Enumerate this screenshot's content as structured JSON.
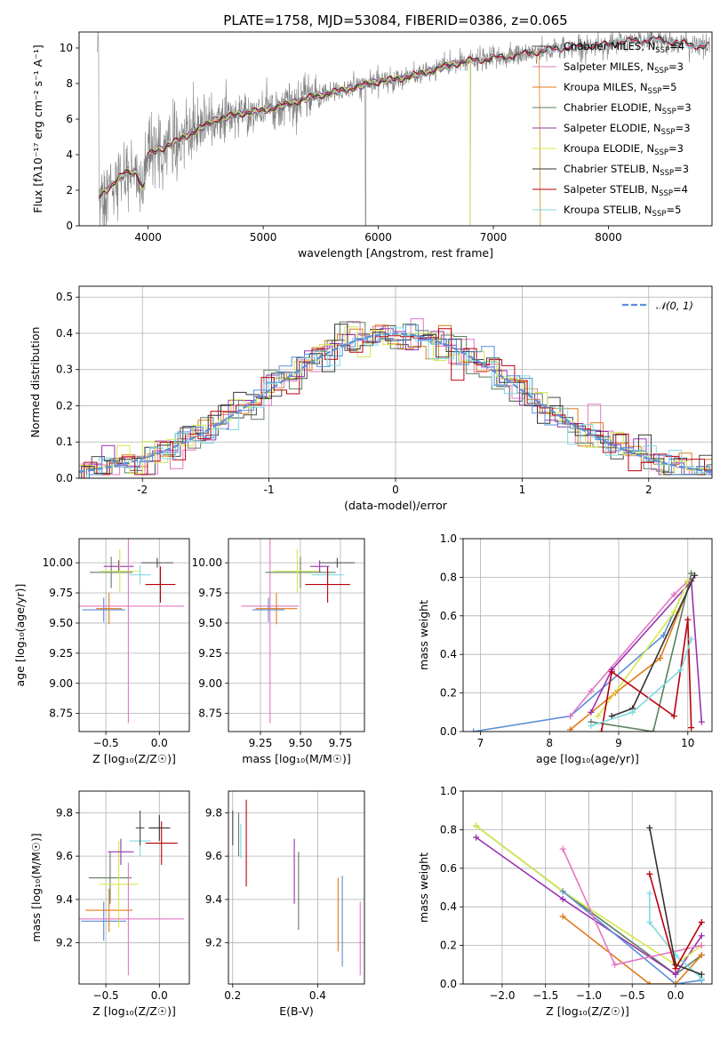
{
  "palette": {
    "Chabrier MILES": "#4a4a4a",
    "Salpeter MILES": "#e377c2",
    "Kroupa MILES": "#e07b1a",
    "Chabrier ELODIE": "#5f7f5f",
    "Salpeter ELODIE": "#9a32b0",
    "Kroupa ELODIE": "#d4e84a",
    "Chabrier STELIB": "#333333",
    "Salpeter STELIB": "#b8000a",
    "Kroupa STELIB": "#7fd9e0",
    "normal": "#5b8fd6",
    "data": "#808080",
    "blue_extra": "#5b8fd6"
  },
  "chart_data": [
    {
      "id": "spectrum",
      "type": "line",
      "title": "PLATE=1758, MJD=53084, FIBERID=0386, z=0.065",
      "xlabel": "wavelength [Angstrom, rest frame]",
      "ylabel": "Flux [fλ10⁻¹⁷ erg cm⁻² s⁻¹ A⁻¹]",
      "xlim": [
        3400,
        8900
      ],
      "ylim": [
        0,
        10.9
      ],
      "xticks": [
        4000,
        5000,
        6000,
        7000,
        8000
      ],
      "yticks": [
        0,
        2,
        4,
        6,
        8,
        10
      ],
      "legend_position": "upper-right",
      "legend": [
        {
          "label": "Chabrier MILES, N",
          "sub": "SSP",
          "suffix": "=4",
          "color_key": "Chabrier MILES"
        },
        {
          "label": "Salpeter MILES, N",
          "sub": "SSP",
          "suffix": "=3",
          "color_key": "Salpeter MILES"
        },
        {
          "label": "Kroupa MILES, N",
          "sub": "SSP",
          "suffix": "=5",
          "color_key": "Kroupa MILES"
        },
        {
          "label": "Chabrier ELODIE, N",
          "sub": "SSP",
          "suffix": "=3",
          "color_key": "Chabrier ELODIE"
        },
        {
          "label": "Salpeter ELODIE, N",
          "sub": "SSP",
          "suffix": "=3",
          "color_key": "Salpeter ELODIE"
        },
        {
          "label": "Kroupa ELODIE, N",
          "sub": "SSP",
          "suffix": "=3",
          "color_key": "Kroupa ELODIE"
        },
        {
          "label": "Chabrier STELIB, N",
          "sub": "SSP",
          "suffix": "=3",
          "color_key": "Chabrier STELIB"
        },
        {
          "label": "Salpeter STELIB, N",
          "sub": "SSP",
          "suffix": "=4",
          "color_key": "Salpeter STELIB"
        },
        {
          "label": "Kroupa STELIB, N",
          "sub": "SSP",
          "suffix": "=5",
          "color_key": "Kroupa STELIB"
        }
      ],
      "model_continuum": [
        [
          3570,
          1.6
        ],
        [
          3700,
          2.4
        ],
        [
          3800,
          3.0
        ],
        [
          3900,
          3.0
        ],
        [
          3960,
          2.0
        ],
        [
          4000,
          4.0
        ],
        [
          4200,
          4.6
        ],
        [
          4400,
          5.3
        ],
        [
          4600,
          6.0
        ],
        [
          4800,
          6.3
        ],
        [
          5000,
          6.5
        ],
        [
          5200,
          6.8
        ],
        [
          5400,
          7.2
        ],
        [
          5600,
          7.5
        ],
        [
          5800,
          7.8
        ],
        [
          6000,
          8.1
        ],
        [
          6200,
          8.3
        ],
        [
          6400,
          8.6
        ],
        [
          6600,
          9.0
        ],
        [
          6800,
          9.3
        ],
        [
          7000,
          9.4
        ],
        [
          7200,
          9.6
        ],
        [
          7400,
          9.8
        ],
        [
          7600,
          10.0
        ],
        [
          7800,
          10.1
        ],
        [
          8000,
          10.2
        ],
        [
          8200,
          10.4
        ],
        [
          8400,
          10.5
        ],
        [
          8600,
          10.3
        ],
        [
          8800,
          10.1
        ]
      ]
    },
    {
      "id": "residuals",
      "type": "histogram",
      "xlabel": "(data-model)/error",
      "ylabel": "Normed distribution",
      "xlim": [
        -2.5,
        2.5
      ],
      "ylim": [
        0,
        0.53
      ],
      "xticks": [
        -2,
        -1,
        0,
        1,
        2
      ],
      "yticks": [
        0.0,
        0.1,
        0.2,
        0.3,
        0.4,
        0.5
      ],
      "grid": true,
      "legend_position": "upper-right",
      "legend": [
        {
          "label": "𝒩(0, 1)",
          "color_key": "normal",
          "style": "dashed"
        }
      ],
      "bin_width": 0.1,
      "bin_start": -2.5
    },
    {
      "id": "age_vs_Z",
      "type": "errorbar",
      "xlabel": "Z [log₁₀(Z/Z☉)]",
      "ylabel": "age  [log₁₀(age/yr)]",
      "xlim": [
        -0.75,
        0.28
      ],
      "ylim": [
        8.6,
        10.2
      ],
      "xticks": [
        -0.5,
        0.0
      ],
      "xticklabels": [
        "−0.5",
        "0.0"
      ],
      "yticks": [
        8.75,
        9.0,
        9.25,
        9.5,
        9.75,
        10.0
      ],
      "yticklabels": [
        "8.75",
        "9.00",
        "9.25",
        "9.50",
        "9.75",
        "10.00"
      ],
      "grid": true,
      "points": [
        {
          "color_key": "blue_extra",
          "x": -0.52,
          "xerr": 0.2,
          "y": 9.61,
          "yerr": 0.1
        },
        {
          "color_key": "Kroupa MILES",
          "x": -0.47,
          "xerr": 0.12,
          "y": 9.62,
          "yerr": 0.13
        },
        {
          "color_key": "Chabrier ELODIE",
          "x": -0.45,
          "xerr": 0.2,
          "y": 9.92,
          "yerr": 0.13
        },
        {
          "color_key": "Salpeter ELODIE",
          "x": -0.38,
          "xerr": 0.14,
          "y": 9.97,
          "yerr": 0.05
        },
        {
          "color_key": "Kroupa ELODIE",
          "x": -0.37,
          "xerr": 0.18,
          "y": 9.93,
          "yerr": 0.18
        },
        {
          "color_key": "Salpeter MILES",
          "x": -0.29,
          "xerr": 0.52,
          "y": 9.64,
          "yerr": 0.97
        },
        {
          "color_key": "Kroupa STELIB",
          "x": -0.18,
          "xerr": 0.1,
          "y": 9.9,
          "yerr": 0.08
        },
        {
          "color_key": "Chabrier MILES",
          "x": -0.02,
          "xerr": 0.15,
          "y": 10.0,
          "yerr": 0.04
        },
        {
          "color_key": "Salpeter STELIB",
          "x": 0.01,
          "xerr": 0.14,
          "y": 9.82,
          "yerr": 0.15
        }
      ]
    },
    {
      "id": "age_vs_mass",
      "type": "errorbar",
      "xlabel": "mass [log₁₀(M/M☉)]",
      "ylabel": "",
      "xlim": [
        9.05,
        9.9
      ],
      "ylim": [
        8.6,
        10.2
      ],
      "xticks": [
        9.25,
        9.5,
        9.75
      ],
      "xticklabels": [
        "9.25",
        "9.50",
        "9.75"
      ],
      "yticks": [
        8.75,
        9.0,
        9.25,
        9.5,
        9.75,
        10.0
      ],
      "yticklabels": [
        "8.75",
        "9.00",
        "9.25",
        "9.50",
        "9.75",
        "10.00"
      ],
      "grid": true,
      "points": [
        {
          "color_key": "Salpeter MILES",
          "x": 9.31,
          "xerr": 0.18,
          "y": 9.64,
          "yerr": 0.97
        },
        {
          "color_key": "blue_extra",
          "x": 9.3,
          "xerr": 0.1,
          "y": 9.61,
          "yerr": 0.1
        },
        {
          "color_key": "Kroupa MILES",
          "x": 9.35,
          "xerr": 0.13,
          "y": 9.62,
          "yerr": 0.13
        },
        {
          "color_key": "Chabrier ELODIE",
          "x": 9.5,
          "xerr": 0.22,
          "y": 9.92,
          "yerr": 0.13
        },
        {
          "color_key": "Kroupa ELODIE",
          "x": 9.48,
          "xerr": 0.15,
          "y": 9.93,
          "yerr": 0.18
        },
        {
          "color_key": "Salpeter ELODIE",
          "x": 9.62,
          "xerr": 0.06,
          "y": 9.97,
          "yerr": 0.05
        },
        {
          "color_key": "Kroupa STELIB",
          "x": 9.67,
          "xerr": 0.1,
          "y": 9.9,
          "yerr": 0.08
        },
        {
          "color_key": "Chabrier MILES",
          "x": 9.73,
          "xerr": 0.11,
          "y": 10.0,
          "yerr": 0.04
        },
        {
          "color_key": "Salpeter STELIB",
          "x": 9.67,
          "xerr": 0.14,
          "y": 9.82,
          "yerr": 0.15
        }
      ]
    },
    {
      "id": "weight_vs_age",
      "type": "line",
      "xlabel": "age  [log₁₀(age/yr)]",
      "ylabel": "mass weight",
      "xlim": [
        6.75,
        10.35
      ],
      "ylim": [
        0,
        1.0
      ],
      "xticks": [
        7,
        8,
        9,
        10
      ],
      "yticks": [
        0.0,
        0.2,
        0.4,
        0.6,
        0.8,
        1.0
      ],
      "grid": true,
      "series": [
        {
          "color_key": "blue_extra",
          "points": [
            [
              6.9,
              0.0
            ],
            [
              8.3,
              0.08
            ],
            [
              9.65,
              0.5
            ],
            [
              10.0,
              0.78
            ]
          ]
        },
        {
          "color_key": "Salpeter MILES",
          "points": [
            [
              8.3,
              0.08
            ],
            [
              8.6,
              0.21
            ],
            [
              9.8,
              0.71
            ],
            [
              10.0,
              0.78
            ]
          ]
        },
        {
          "color_key": "Kroupa MILES",
          "points": [
            [
              8.3,
              0.01
            ],
            [
              8.95,
              0.2
            ],
            [
              9.6,
              0.38
            ],
            [
              10.05,
              0.78
            ]
          ]
        },
        {
          "color_key": "Chabrier ELODIE",
          "points": [
            [
              8.6,
              0.05
            ],
            [
              9.5,
              0.0
            ],
            [
              10.05,
              0.82
            ]
          ]
        },
        {
          "color_key": "Salpeter ELODIE",
          "points": [
            [
              8.6,
              0.1
            ],
            [
              8.9,
              0.32
            ],
            [
              10.05,
              0.78
            ],
            [
              10.2,
              0.05
            ]
          ]
        },
        {
          "color_key": "Kroupa ELODIE",
          "points": [
            [
              8.7,
              0.08
            ],
            [
              9.8,
              0.62
            ],
            [
              10.0,
              0.78
            ]
          ]
        },
        {
          "color_key": "Chabrier STELIB",
          "points": [
            [
              8.9,
              0.08
            ],
            [
              9.2,
              0.12
            ],
            [
              10.1,
              0.81
            ]
          ]
        },
        {
          "color_key": "Salpeter STELIB",
          "points": [
            [
              8.75,
              0.0
            ],
            [
              8.9,
              0.31
            ],
            [
              9.8,
              0.08
            ],
            [
              10.0,
              0.58
            ],
            [
              10.05,
              0.02
            ]
          ]
        },
        {
          "color_key": "Kroupa STELIB",
          "points": [
            [
              8.6,
              0.03
            ],
            [
              9.2,
              0.1
            ],
            [
              9.9,
              0.32
            ],
            [
              10.05,
              0.48
            ]
          ]
        }
      ]
    },
    {
      "id": "mass_vs_Z",
      "type": "errorbar",
      "xlabel": "Z [log₁₀(Z/Z☉)]",
      "ylabel": "mass [log₁₀(M/M☉)]",
      "xlim": [
        -0.75,
        0.28
      ],
      "ylim": [
        9.01,
        9.9
      ],
      "xticks": [
        -0.5,
        0.0
      ],
      "xticklabels": [
        "−0.5",
        "0.0"
      ],
      "yticks": [
        9.2,
        9.4,
        9.6,
        9.8
      ],
      "yticklabels": [
        "9.2",
        "9.4",
        "9.6",
        "9.8"
      ],
      "grid": true,
      "points": [
        {
          "color_key": "blue_extra",
          "x": -0.52,
          "xerr": 0.21,
          "y": 9.3,
          "yerr": 0.09
        },
        {
          "color_key": "Kroupa MILES",
          "x": -0.47,
          "xerr": 0.22,
          "y": 9.35,
          "yerr": 0.1
        },
        {
          "color_key": "Chabrier ELODIE",
          "x": -0.46,
          "xerr": 0.2,
          "y": 9.5,
          "yerr": 0.12
        },
        {
          "color_key": "Kroupa ELODIE",
          "x": -0.38,
          "xerr": 0.18,
          "y": 9.47,
          "yerr": 0.2
        },
        {
          "color_key": "Salpeter ELODIE",
          "x": -0.36,
          "xerr": 0.12,
          "y": 9.62,
          "yerr": 0.06
        },
        {
          "color_key": "Salpeter MILES",
          "x": -0.29,
          "xerr": 0.52,
          "y": 9.31,
          "yerr": 0.26
        },
        {
          "color_key": "Kroupa STELIB",
          "x": -0.18,
          "xerr": 0.1,
          "y": 9.67,
          "yerr": 0.07
        },
        {
          "color_key": "Chabrier MILES",
          "x": -0.18,
          "xerr": 0.04,
          "y": 9.73,
          "yerr": 0.08
        },
        {
          "color_key": "Salpeter STELIB",
          "x": 0.02,
          "xerr": 0.15,
          "y": 9.66,
          "yerr": 0.1
        },
        {
          "color_key": "Chabrier STELIB",
          "x": 0.0,
          "xerr": 0.1,
          "y": 9.73,
          "yerr": 0.06
        }
      ]
    },
    {
      "id": "mass_vs_EBV",
      "type": "errorbar",
      "xlabel": "E(B-V)",
      "ylabel": "",
      "xlim": [
        0.19,
        0.51
      ],
      "ylim": [
        9.01,
        9.9
      ],
      "xticks": [
        0.2,
        0.4
      ],
      "xticklabels": [
        "0.2",
        "0.4"
      ],
      "yticks": [
        9.2,
        9.4,
        9.6,
        9.8
      ],
      "yticklabels": [
        "9.2",
        "9.4",
        "9.6",
        "9.8"
      ],
      "grid": true,
      "points": [
        {
          "color_key": "Chabrier MILES",
          "x": 0.2,
          "xerr": 0.0,
          "y": 9.73,
          "yerr": 0.08
        },
        {
          "color_key": "Chabrier ELODIE",
          "x": 0.214,
          "xerr": 0.0,
          "y": 9.7,
          "yerr": 0.1
        },
        {
          "color_key": "Kroupa STELIB",
          "x": 0.219,
          "xerr": 0.0,
          "y": 9.67,
          "yerr": 0.08
        },
        {
          "color_key": "Salpeter STELIB",
          "x": 0.232,
          "xerr": 0.0,
          "y": 9.66,
          "yerr": 0.2
        },
        {
          "color_key": "Salpeter ELODIE",
          "x": 0.345,
          "xerr": 0.0,
          "y": 9.53,
          "yerr": 0.15
        },
        {
          "color_key": "Chabrier ELODIE",
          "x": 0.355,
          "xerr": 0.0,
          "y": 9.44,
          "yerr": 0.18
        },
        {
          "color_key": "Kroupa MILES",
          "x": 0.448,
          "xerr": 0.0,
          "y": 9.33,
          "yerr": 0.17
        },
        {
          "color_key": "blue_extra",
          "x": 0.458,
          "xerr": 0.0,
          "y": 9.3,
          "yerr": 0.21
        },
        {
          "color_key": "Salpeter MILES",
          "x": 0.5,
          "xerr": 0.0,
          "y": 9.22,
          "yerr": 0.17
        }
      ]
    },
    {
      "id": "weight_vs_Z",
      "type": "line",
      "xlabel": "Z [log₁₀(Z/Z☉)]",
      "ylabel": "mass weight",
      "xlim": [
        -2.45,
        0.42
      ],
      "ylim": [
        0,
        1.0
      ],
      "xticks": [
        -2.0,
        -1.5,
        -1.0,
        -0.5,
        0.0
      ],
      "xticklabels": [
        "−2.0",
        "−1.5",
        "−1.0",
        "−0.5",
        "0.0"
      ],
      "yticks": [
        0.0,
        0.2,
        0.4,
        0.6,
        0.8,
        1.0
      ],
      "grid": true,
      "series": [
        {
          "color_key": "Chabrier ELODIE",
          "points": [
            [
              -2.3,
              0.82
            ],
            [
              -1.3,
              0.48
            ],
            [
              0.0,
              0.05
            ],
            [
              0.3,
              0.15
            ]
          ]
        },
        {
          "color_key": "Salpeter ELODIE",
          "points": [
            [
              -2.3,
              0.76
            ],
            [
              -1.3,
              0.44
            ],
            [
              0.0,
              0.05
            ],
            [
              0.3,
              0.25
            ]
          ]
        },
        {
          "color_key": "Kroupa ELODIE",
          "points": [
            [
              -2.3,
              0.82
            ],
            [
              -1.3,
              0.48
            ],
            [
              0.0,
              0.1
            ],
            [
              0.3,
              0.2
            ]
          ]
        },
        {
          "color_key": "blue_extra",
          "points": [
            [
              -1.3,
              0.48
            ],
            [
              0.0,
              0.0
            ],
            [
              0.3,
              0.02
            ]
          ]
        },
        {
          "color_key": "Kroupa MILES",
          "points": [
            [
              -1.3,
              0.35
            ],
            [
              -0.3,
              0.0
            ],
            [
              0.0,
              0.0
            ],
            [
              0.3,
              0.15
            ]
          ]
        },
        {
          "color_key": "Salpeter MILES",
          "points": [
            [
              -1.3,
              0.7
            ],
            [
              -0.7,
              0.1
            ],
            [
              0.3,
              0.2
            ]
          ]
        },
        {
          "color_key": "Kroupa STELIB",
          "points": [
            [
              -0.3,
              0.47
            ],
            [
              -0.3,
              0.32
            ],
            [
              0.0,
              0.15
            ],
            [
              0.3,
              0.03
            ]
          ]
        },
        {
          "color_key": "Chabrier STELIB",
          "points": [
            [
              -0.3,
              0.81
            ],
            [
              0.0,
              0.1
            ],
            [
              0.3,
              0.05
            ]
          ]
        },
        {
          "color_key": "Salpeter STELIB",
          "points": [
            [
              -0.3,
              0.57
            ],
            [
              0.0,
              0.08
            ],
            [
              0.3,
              0.32
            ]
          ]
        }
      ]
    }
  ]
}
